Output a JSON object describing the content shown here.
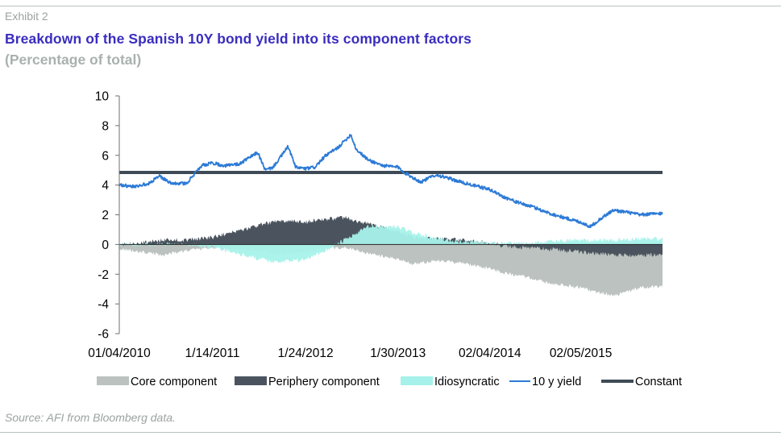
{
  "header": {
    "exhibit": "Exhibit 2",
    "title": "Breakdown of the Spanish 10Y bond yield into its component factors",
    "subtitle": "(Percentage of total)"
  },
  "footer": {
    "source": "Source: AFI from Bloomberg data."
  },
  "chart_data": {
    "type": "area",
    "xlabel": "",
    "ylabel": "",
    "ylim": [
      -6,
      10
    ],
    "y_ticks": [
      10,
      8,
      6,
      4,
      2,
      0,
      -2,
      -4,
      -6
    ],
    "x_tick_labels": [
      "01/04/2010",
      "1/14/2011",
      "1/24/2012",
      "1/30/2013",
      "02/04/2014",
      "02/05/2015"
    ],
    "x_tick_dates": [
      "2010-01-04",
      "2011-01-14",
      "2012-01-24",
      "2013-01-30",
      "2014-02-04",
      "2015-02-05"
    ],
    "x_range": [
      "2010-01-04",
      "2015-12-31"
    ],
    "grid": false,
    "legend_position": "bottom",
    "colors": {
      "core": "#bbc2bf",
      "periphery": "#4b545e",
      "idiosyncratic": "#a6f2ea",
      "yield": "#2c7ad6",
      "constant": "#3e4a55",
      "axis": "#6f6f6f"
    },
    "series": [
      {
        "name": "Core component",
        "kind": "area",
        "x": [
          "2010-01-04",
          "2010-04-01",
          "2010-07-01",
          "2010-10-01",
          "2011-01-14",
          "2011-04-01",
          "2011-07-01",
          "2011-10-01",
          "2012-01-24",
          "2012-04-01",
          "2012-07-01",
          "2012-10-01",
          "2013-01-30",
          "2013-04-01",
          "2013-07-01",
          "2013-10-01",
          "2014-02-04",
          "2014-04-01",
          "2014-07-01",
          "2014-10-01",
          "2015-02-05",
          "2015-04-01",
          "2015-07-01",
          "2015-10-01",
          "2015-12-31"
        ],
        "values": [
          -0.3,
          -0.5,
          -0.7,
          -0.4,
          -0.2,
          -0.3,
          -0.4,
          -0.6,
          -0.5,
          -0.3,
          -0.2,
          -0.6,
          -1.0,
          -1.3,
          -1.1,
          -1.2,
          -1.6,
          -1.9,
          -2.2,
          -2.6,
          -2.9,
          -3.2,
          -3.4,
          -2.9,
          -2.8
        ]
      },
      {
        "name": "Periphery component",
        "kind": "area",
        "x": [
          "2010-01-04",
          "2010-04-01",
          "2010-07-01",
          "2010-10-01",
          "2011-01-14",
          "2011-04-01",
          "2011-07-01",
          "2011-10-01",
          "2012-01-24",
          "2012-04-01",
          "2012-07-01",
          "2012-10-01",
          "2013-01-30",
          "2013-04-01",
          "2013-07-01",
          "2013-10-01",
          "2014-02-04",
          "2014-04-01",
          "2014-07-01",
          "2014-10-01",
          "2015-02-05",
          "2015-04-01",
          "2015-07-01",
          "2015-10-01",
          "2015-12-31"
        ],
        "values": [
          0.0,
          0.1,
          0.3,
          0.3,
          0.5,
          0.8,
          1.2,
          1.6,
          1.5,
          1.7,
          1.8,
          1.4,
          0.9,
          0.5,
          0.4,
          0.3,
          0.1,
          -0.1,
          -0.2,
          -0.3,
          -0.5,
          -0.6,
          -0.7,
          -0.7,
          -0.7
        ]
      },
      {
        "name": "Idiosyncratic",
        "kind": "area",
        "x": [
          "2010-01-04",
          "2010-04-01",
          "2010-07-01",
          "2010-10-01",
          "2011-01-14",
          "2011-04-01",
          "2011-07-01",
          "2011-10-01",
          "2012-01-24",
          "2012-04-01",
          "2012-07-01",
          "2012-10-01",
          "2013-01-30",
          "2013-04-01",
          "2013-07-01",
          "2013-10-01",
          "2014-02-04",
          "2014-04-01",
          "2014-07-01",
          "2014-10-01",
          "2015-02-05",
          "2015-04-01",
          "2015-07-01",
          "2015-10-01",
          "2015-12-31"
        ],
        "values": [
          0.0,
          0.0,
          0.0,
          0.0,
          -0.2,
          -0.5,
          -0.9,
          -1.2,
          -1.0,
          -0.5,
          0.3,
          1.2,
          1.2,
          0.8,
          0.4,
          0.2,
          0.1,
          0.1,
          0.1,
          0.2,
          0.3,
          0.3,
          0.3,
          0.4,
          0.4
        ]
      },
      {
        "name": "10 y yield",
        "kind": "line",
        "x": [
          "2010-01-04",
          "2010-03-01",
          "2010-05-01",
          "2010-06-15",
          "2010-08-01",
          "2010-10-01",
          "2010-12-01",
          "2011-01-14",
          "2011-03-01",
          "2011-05-01",
          "2011-07-15",
          "2011-08-15",
          "2011-09-15",
          "2011-11-15",
          "2011-12-15",
          "2012-01-24",
          "2012-03-01",
          "2012-04-15",
          "2012-06-01",
          "2012-07-24",
          "2012-08-15",
          "2012-10-01",
          "2012-12-01",
          "2013-01-30",
          "2013-03-01",
          "2013-05-01",
          "2013-07-01",
          "2013-09-01",
          "2013-11-01",
          "2014-02-04",
          "2014-04-01",
          "2014-06-01",
          "2014-08-01",
          "2014-10-01",
          "2014-12-01",
          "2015-02-05",
          "2015-03-15",
          "2015-05-01",
          "2015-06-15",
          "2015-08-01",
          "2015-10-01",
          "2015-12-31"
        ],
        "values": [
          4.0,
          3.9,
          4.1,
          4.6,
          4.1,
          4.1,
          5.3,
          5.5,
          5.3,
          5.4,
          6.2,
          5.0,
          5.2,
          6.6,
          5.2,
          5.1,
          5.2,
          6.0,
          6.5,
          7.4,
          6.4,
          5.7,
          5.3,
          5.2,
          4.8,
          4.2,
          4.7,
          4.4,
          4.1,
          3.7,
          3.2,
          2.8,
          2.5,
          2.1,
          1.8,
          1.5,
          1.2,
          1.8,
          2.3,
          2.2,
          2.0,
          2.1
        ]
      },
      {
        "name": "Constant",
        "kind": "line",
        "x": [
          "2010-01-04",
          "2015-12-31"
        ],
        "values": [
          4.85,
          4.85
        ]
      }
    ]
  }
}
